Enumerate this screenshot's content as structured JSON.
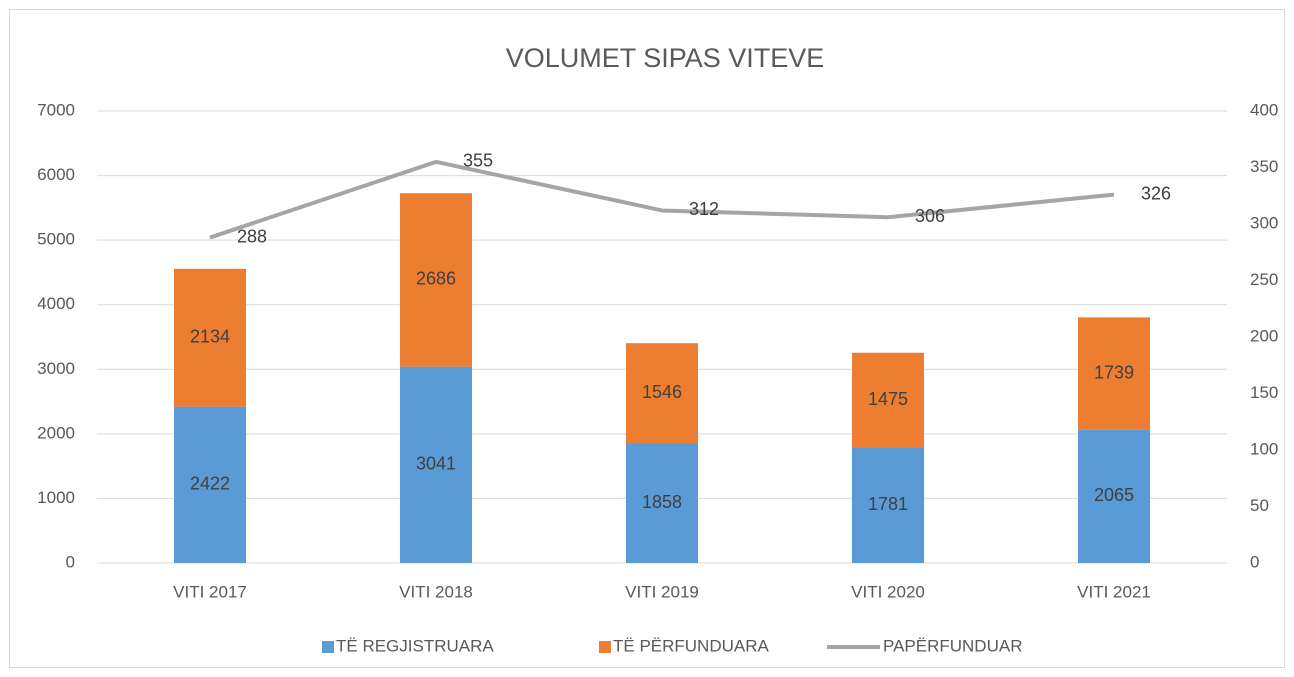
{
  "chart_data": {
    "type": "bar",
    "stacked": true,
    "title": "VOLUMET SIPAS VITEVE",
    "categories": [
      "VITI 2017",
      "VITI 2018",
      "VITI 2019",
      "VITI 2020",
      "VITI 2021"
    ],
    "series": [
      {
        "name": "TË REGJISTRUARA",
        "type": "bar",
        "color": "#5b9bd5",
        "values": [
          2422,
          3041,
          1858,
          1781,
          2065
        ]
      },
      {
        "name": "TË PËRFUNDUARA",
        "type": "bar",
        "color": "#ed7d31",
        "values": [
          2134,
          2686,
          1546,
          1475,
          1739
        ]
      },
      {
        "name": "PAPËRFUNDUAR",
        "type": "line",
        "axis": "y2",
        "color": "#a5a5a5",
        "values": [
          288,
          355,
          312,
          306,
          326
        ]
      }
    ],
    "ylim": [
      0,
      7000
    ],
    "yticks": [
      0,
      1000,
      2000,
      3000,
      4000,
      5000,
      6000,
      7000
    ],
    "y2lim": [
      0,
      400
    ],
    "y2ticks": [
      0,
      50,
      100,
      150,
      200,
      250,
      300,
      350,
      400
    ],
    "grid": true,
    "legend": "bottom"
  }
}
